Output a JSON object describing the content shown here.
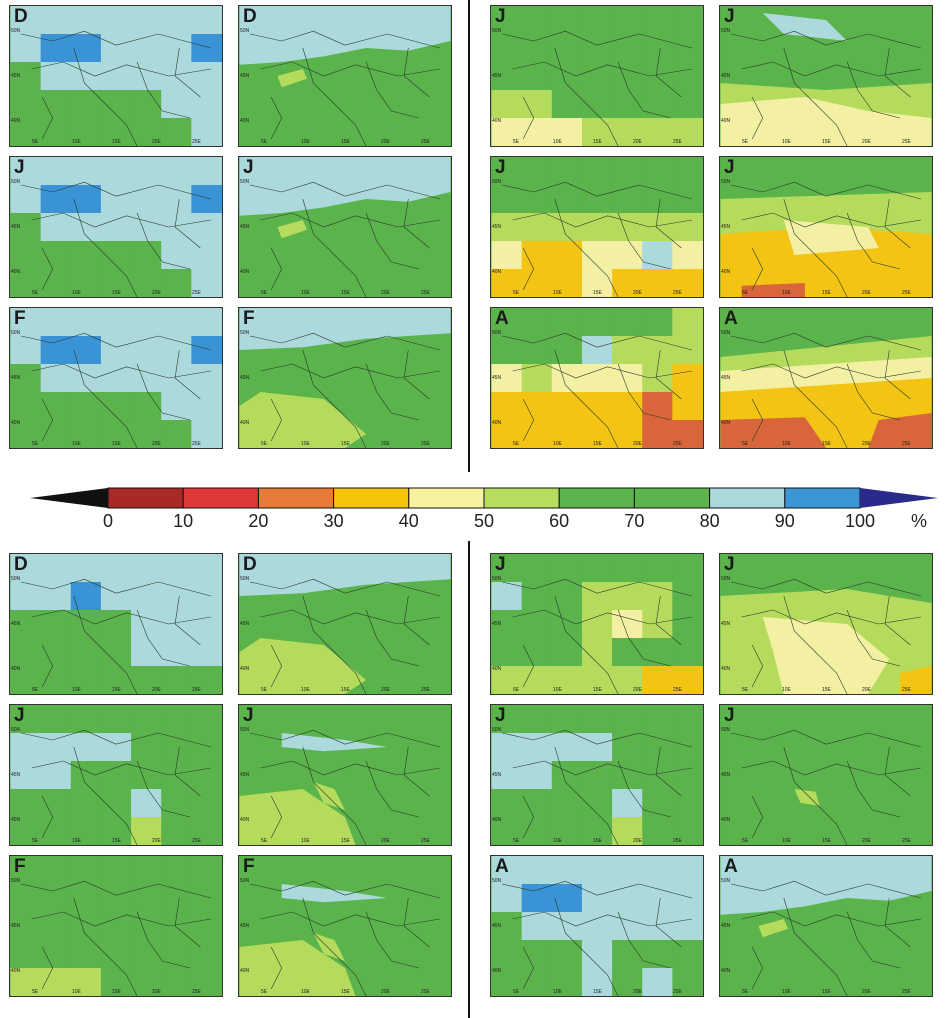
{
  "legend": {
    "ticks": [
      "0",
      "10",
      "20",
      "30",
      "40",
      "50",
      "60",
      "70",
      "80",
      "90",
      "100"
    ],
    "unit": "%",
    "colors": [
      "#a82a26",
      "#df3838",
      "#e87a37",
      "#f5c30a",
      "#f6f2a0",
      "#b7dc5e",
      "#5cb44c",
      "#5cb44c",
      "#abd9dc",
      "#3b96d6"
    ],
    "under_color": "#111111",
    "over_color": "#2a2a8a"
  },
  "palette": {
    "lightblue": "#abd9dc",
    "blue": "#3a93d5",
    "green": "#5ab34b",
    "lightgreen": "#b5db5d",
    "paleyellow": "#f4f0a3",
    "yellow": "#f3c414",
    "orange": "#e7883a",
    "darkorange": "#d8663a"
  },
  "axis": {
    "lat_labels": [
      "50N",
      "45N",
      "40N"
    ],
    "lon_labels": [
      "5E",
      "10E",
      "15E",
      "20E",
      "25E"
    ]
  },
  "panels": [
    {
      "id": "p1",
      "label": "D",
      "style": "coarse-wet"
    },
    {
      "id": "p2",
      "label": "D",
      "style": "fine-wet"
    },
    {
      "id": "p3",
      "label": "J",
      "style": "coarse-dry1"
    },
    {
      "id": "p4",
      "label": "J",
      "style": "fine-dry1"
    },
    {
      "id": "p5",
      "label": "J",
      "style": "coarse-wet"
    },
    {
      "id": "p6",
      "label": "J",
      "style": "fine-wet"
    },
    {
      "id": "p7",
      "label": "J",
      "style": "coarse-dry2"
    },
    {
      "id": "p8",
      "label": "J",
      "style": "fine-dry2"
    },
    {
      "id": "p9",
      "label": "F",
      "style": "coarse-wet"
    },
    {
      "id": "p10",
      "label": "F",
      "style": "fine-green"
    },
    {
      "id": "p11",
      "label": "A",
      "style": "coarse-dry3"
    },
    {
      "id": "p12",
      "label": "A",
      "style": "fine-dry3"
    },
    {
      "id": "p13",
      "label": "D",
      "style": "coarse-wet2"
    },
    {
      "id": "p14",
      "label": "D",
      "style": "fine-green"
    },
    {
      "id": "p15",
      "label": "J",
      "style": "coarse-mid"
    },
    {
      "id": "p16",
      "label": "J",
      "style": "fine-mid"
    },
    {
      "id": "p17",
      "label": "J",
      "style": "coarse-wet3"
    },
    {
      "id": "p18",
      "label": "J",
      "style": "fine-south"
    },
    {
      "id": "p19",
      "label": "J",
      "style": "coarse-wet3"
    },
    {
      "id": "p20",
      "label": "J",
      "style": "fine-allgreen"
    },
    {
      "id": "p21",
      "label": "F",
      "style": "coarse-green"
    },
    {
      "id": "p22",
      "label": "F",
      "style": "fine-south"
    },
    {
      "id": "p23",
      "label": "A",
      "style": "coarse-wet4"
    },
    {
      "id": "p24",
      "label": "A",
      "style": "fine-wet"
    }
  ]
}
